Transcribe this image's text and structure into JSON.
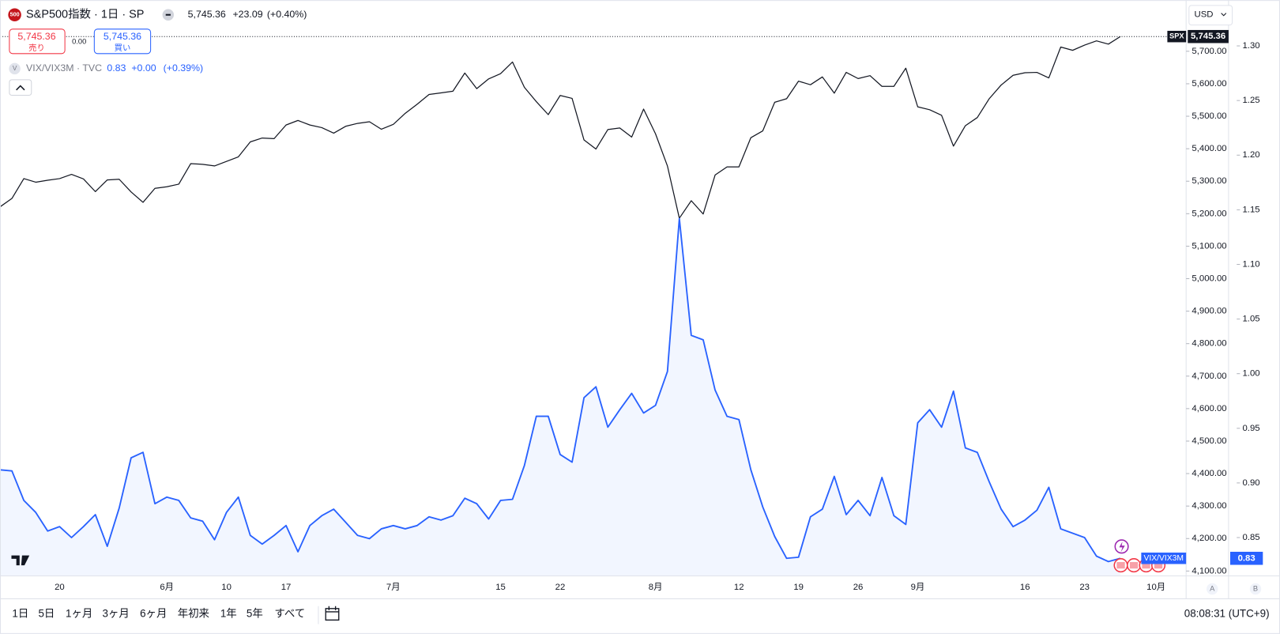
{
  "chart_data": {
    "type": "line",
    "categories": [
      null,
      null,
      null,
      null,
      null,
      "20",
      null,
      null,
      null,
      null,
      null,
      null,
      null,
      null,
      "6月",
      null,
      null,
      null,
      null,
      "10",
      null,
      null,
      null,
      null,
      "17",
      null,
      null,
      null,
      null,
      null,
      null,
      null,
      null,
      "7月",
      null,
      null,
      null,
      null,
      null,
      null,
      null,
      null,
      "15",
      null,
      null,
      null,
      null,
      "22",
      null,
      null,
      null,
      null,
      null,
      null,
      null,
      "8月",
      null,
      null,
      null,
      null,
      null,
      null,
      "12",
      null,
      null,
      null,
      null,
      "19",
      null,
      null,
      null,
      null,
      "26",
      null,
      null,
      null,
      null,
      "9月",
      null,
      null,
      null,
      null,
      null,
      null,
      null,
      null,
      "16",
      null,
      null,
      null,
      null,
      "23",
      null,
      null,
      null,
      null,
      null,
      "10月"
    ],
    "series": [
      {
        "name": "SPX",
        "color": "#131722",
        "axis": "y",
        "values": [
          5221,
          5247,
          5308,
          5297,
          5303,
          5308,
          5321,
          5307,
          5268,
          5304,
          5306,
          5267,
          5235,
          5278,
          5283,
          5291,
          5354,
          5352,
          5347,
          5361,
          5375,
          5421,
          5433,
          5431,
          5473,
          5487,
          5473,
          5465,
          5448,
          5469,
          5478,
          5483,
          5460,
          5475,
          5509,
          5537,
          5567,
          5572,
          5577,
          5633,
          5585,
          5615,
          5631,
          5667,
          5589,
          5545,
          5505,
          5564,
          5555,
          5427,
          5399,
          5459,
          5464,
          5436,
          5522,
          5446,
          5347,
          5186,
          5240,
          5199,
          5319,
          5344,
          5344,
          5434,
          5455,
          5543,
          5554,
          5608,
          5597,
          5621,
          5571,
          5635,
          5616,
          5625,
          5592,
          5592,
          5648,
          5529,
          5520,
          5503,
          5408,
          5471,
          5496,
          5554,
          5596,
          5626,
          5634,
          5635,
          5618,
          5713,
          5703,
          5719,
          5732,
          5722,
          5745.36,
          null,
          null,
          null
        ]
      },
      {
        "name": "VIX/VIX3M",
        "color": "#2962ff",
        "axis": "y2",
        "area": true,
        "values": [
          0.912,
          0.911,
          0.884,
          0.873,
          0.856,
          0.86,
          0.85,
          0.86,
          0.871,
          0.842,
          0.877,
          0.923,
          0.928,
          0.881,
          0.887,
          0.884,
          0.868,
          0.865,
          0.848,
          0.873,
          0.887,
          0.852,
          0.844,
          0.852,
          0.861,
          0.837,
          0.861,
          0.87,
          0.876,
          0.864,
          0.852,
          0.849,
          0.858,
          0.861,
          0.858,
          0.861,
          0.869,
          0.866,
          0.87,
          0.886,
          0.881,
          0.867,
          0.884,
          0.885,
          0.916,
          0.961,
          0.961,
          0.926,
          0.919,
          0.978,
          0.988,
          0.951,
          0.967,
          0.982,
          0.964,
          0.971,
          1.002,
          1.142,
          1.035,
          1.031,
          0.985,
          0.961,
          0.958,
          0.912,
          0.878,
          0.851,
          0.831,
          0.832,
          0.869,
          0.876,
          0.906,
          0.871,
          0.884,
          0.87,
          0.905,
          0.87,
          0.862,
          0.955,
          0.967,
          0.951,
          0.984,
          0.932,
          0.928,
          0.901,
          0.876,
          0.86,
          0.866,
          0.875,
          0.896,
          0.858,
          0.854,
          0.85,
          0.833,
          0.828,
          0.831,
          null,
          null,
          null
        ]
      }
    ],
    "ylim": [
      4085,
      5857.5
    ],
    "yticks": [
      {
        "value": 4100,
        "label": "4,100.00"
      },
      {
        "value": 4200,
        "label": "4,200.00"
      },
      {
        "value": 4300,
        "label": "4,300.00"
      },
      {
        "value": 4400,
        "label": "4,400.00"
      },
      {
        "value": 4500,
        "label": "4,500.00"
      },
      {
        "value": 4600,
        "label": "4,600.00"
      },
      {
        "value": 4700,
        "label": "4,700.00"
      },
      {
        "value": 4800,
        "label": "4,800.00"
      },
      {
        "value": 4900,
        "label": "4,900.00"
      },
      {
        "value": 5000,
        "label": "5,000.00"
      },
      {
        "value": 5100,
        "label": "5,100.00"
      },
      {
        "value": 5200,
        "label": "5,200.00"
      },
      {
        "value": 5300,
        "label": "5,300.00"
      },
      {
        "value": 5400,
        "label": "5,400.00"
      },
      {
        "value": 5500,
        "label": "5,500.00"
      },
      {
        "value": 5600,
        "label": "5,600.00"
      },
      {
        "value": 5700,
        "label": "5,700.00"
      }
    ],
    "y2lim": [
      0.8149,
      1.3419
    ],
    "y2ticks": [
      0.85,
      {
        "value": 0.9,
        "label": "0.90"
      },
      0.95,
      {
        "value": 1,
        "label": "1.00"
      },
      1.05,
      {
        "value": 1.1,
        "label": "1.10"
      },
      1.15,
      {
        "value": 1.2,
        "label": "1.20"
      },
      1.25,
      {
        "value": 1.3,
        "label": "1.30"
      }
    ],
    "grid": false
  },
  "ui": {
    "logo": "500",
    "legend_main": "S&P500指数 · 1日 · SP",
    "price": "5,745.36",
    "change": "+23.09",
    "change_pct": "(+0.40%)",
    "sell_price": "5,745.36",
    "sell": "売り",
    "spread": "0.00",
    "buy_price": "5,745.36",
    "buy": "買い",
    "legend_vix_icon": "V",
    "legend_vix": "VIX/VIX3M · TVC",
    "vix_value": "0.83",
    "vix_change": "+0.00",
    "vix_change_pct": "(+0.39%)",
    "currency": "USD",
    "spx_tag_value": "5,745.36",
    "vix_tag_value": "0.83",
    "scale_a": "A",
    "scale_b": "B",
    "ranges": [
      "1日",
      "5日",
      "1ヶ月",
      "3ヶ月",
      "6ヶ月",
      "年初来",
      "1年",
      "5年",
      "すべて"
    ],
    "clock": "08:08:31 (UTC+9)"
  }
}
